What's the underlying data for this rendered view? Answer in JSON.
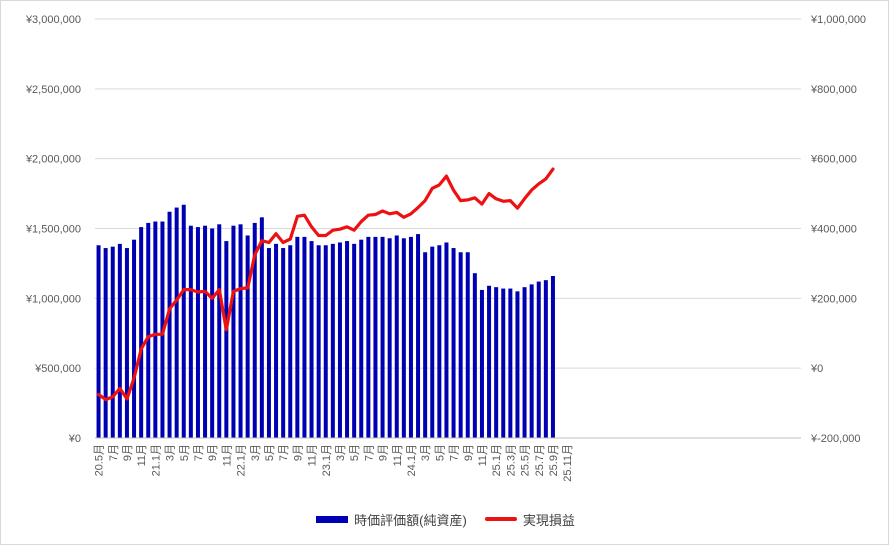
{
  "chart_data": {
    "type": "bar+line",
    "colors": {
      "bar": "#0000b3",
      "line": "#ee1111",
      "neg_axis_label": "#ee1111",
      "grid": "#d9d9d9",
      "text": "#595959"
    },
    "y_left": {
      "range": [
        0,
        3000000
      ],
      "ticks": [
        0,
        500000,
        1000000,
        1500000,
        2000000,
        2500000,
        3000000
      ],
      "tick_labels": [
        "¥0",
        "¥500,000",
        "¥1,000,000",
        "¥1,500,000",
        "¥2,000,000",
        "¥2,500,000",
        "¥3,000,000"
      ]
    },
    "y_right": {
      "range": [
        -200000,
        1000000
      ],
      "ticks": [
        -200000,
        0,
        200000,
        400000,
        600000,
        800000,
        1000000
      ],
      "tick_labels": [
        "¥-200,000",
        "¥0",
        "¥200,000",
        "¥400,000",
        "¥600,000",
        "¥800,000",
        "¥1,000,000"
      ]
    },
    "x_tick_labels": [
      "20.5月",
      "",
      "7月",
      "",
      "9月",
      "",
      "11月",
      "",
      "21.1月",
      "",
      "3月",
      "",
      "5月",
      "",
      "7月",
      "",
      "9月",
      "",
      "11月",
      "",
      "22.1月",
      "",
      "3月",
      "",
      "5月",
      "",
      "7月",
      "",
      "9月",
      "",
      "11月",
      "",
      "23.1月",
      "",
      "3月",
      "",
      "5月",
      "",
      "7月",
      "",
      "9月",
      "",
      "11月",
      "",
      "24.1月",
      "",
      "3月",
      "",
      "5月",
      "",
      "7月",
      "",
      "9月",
      "",
      "11月",
      "",
      "25.1月",
      "",
      "25.3月",
      "",
      "25.5月",
      "",
      "25.7月",
      "",
      "25.9月",
      "",
      "25.11月"
    ],
    "grid": true,
    "legend_position": "bottom",
    "series": [
      {
        "name": "時価評価額(純資産)",
        "type": "bar",
        "axis": "left",
        "values": [
          1380000,
          1360000,
          1370000,
          1390000,
          1360000,
          1420000,
          1510000,
          1540000,
          1550000,
          1550000,
          1620000,
          1650000,
          1670000,
          1520000,
          1510000,
          1520000,
          1500000,
          1530000,
          1410000,
          1520000,
          1530000,
          1450000,
          1540000,
          1580000,
          1360000,
          1390000,
          1360000,
          1380000,
          1440000,
          1440000,
          1410000,
          1380000,
          1380000,
          1390000,
          1400000,
          1410000,
          1390000,
          1420000,
          1440000,
          1440000,
          1440000,
          1430000,
          1450000,
          1430000,
          1440000,
          1460000,
          1330000,
          1370000,
          1380000,
          1400000,
          1360000,
          1330000,
          1330000,
          1180000,
          1060000,
          1090000,
          1080000,
          1070000,
          1070000,
          1050000,
          1080000,
          1100000,
          1120000,
          1130000,
          1160000
        ]
      },
      {
        "name": "実現損益",
        "type": "line",
        "axis": "right",
        "values": [
          -75000,
          -90000,
          -82000,
          -58000,
          -88000,
          -28000,
          55000,
          90000,
          97000,
          97000,
          170000,
          195000,
          225000,
          225000,
          218000,
          220000,
          200000,
          225000,
          110000,
          220000,
          228000,
          230000,
          325000,
          365000,
          360000,
          385000,
          360000,
          370000,
          435000,
          438000,
          405000,
          380000,
          380000,
          395000,
          398000,
          405000,
          395000,
          420000,
          438000,
          440000,
          450000,
          442000,
          446000,
          432000,
          442000,
          460000,
          480000,
          515000,
          525000,
          550000,
          510000,
          480000,
          482000,
          488000,
          470000,
          500000,
          485000,
          478000,
          480000,
          458000,
          485000,
          510000,
          528000,
          542000,
          570000
        ]
      }
    ]
  }
}
